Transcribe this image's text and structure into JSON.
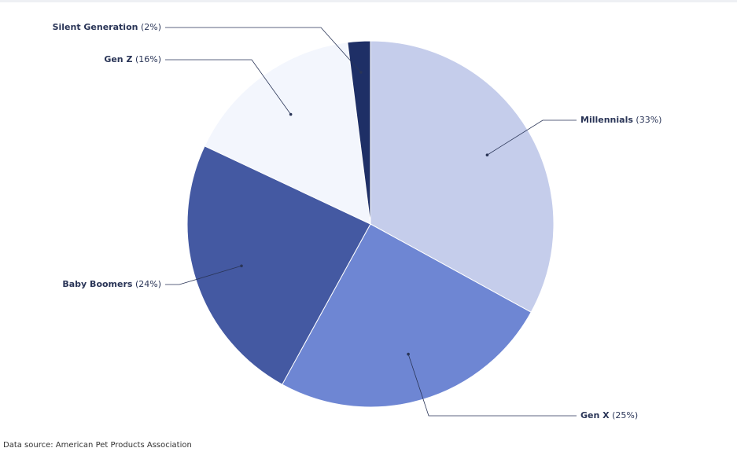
{
  "chart_data": {
    "type": "pie",
    "categories": [
      "Millennials",
      "Gen X",
      "Baby Boomers",
      "Gen Z",
      "Silent Generation"
    ],
    "values": [
      33,
      25,
      24,
      16,
      2
    ],
    "value_labels": [
      "(33%)",
      "(25%)",
      "(24%)",
      "(16%)",
      "(2%)"
    ],
    "colors": [
      "#c5cdeb",
      "#6e86d3",
      "#4459a2",
      "#f3f6fd",
      "#1e2f66"
    ],
    "source": "Data source: American Pet Products Association"
  }
}
